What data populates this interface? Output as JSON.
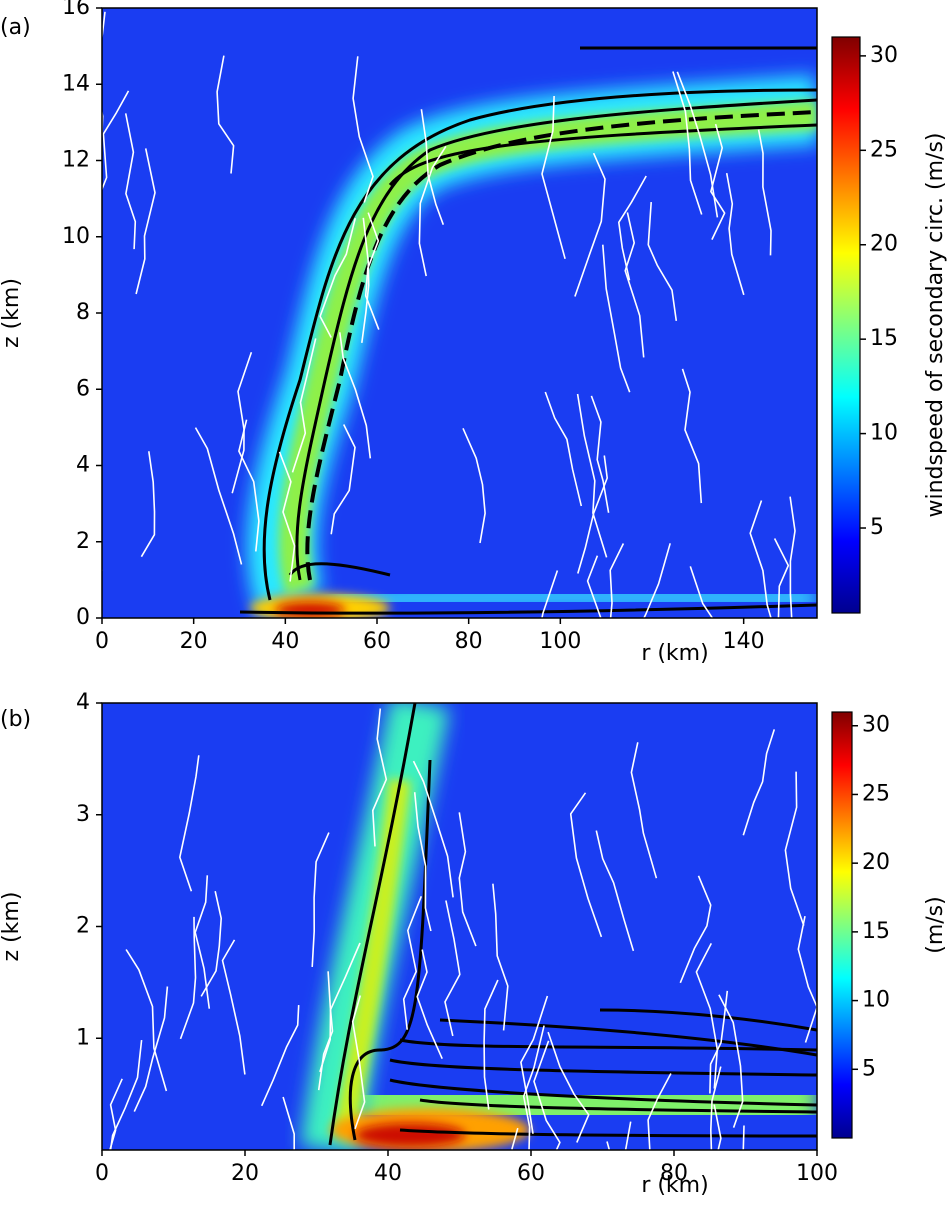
{
  "chart_data": [
    {
      "type": "heatmap",
      "panel_label": "(a)",
      "xlabel": "r (km)",
      "ylabel": "z (km)",
      "xlim": [
        0,
        156
      ],
      "xticks": [
        0,
        20,
        40,
        60,
        80,
        100,
        140
      ],
      "ylim": [
        0,
        16
      ],
      "yticks": [
        0,
        2,
        4,
        6,
        8,
        10,
        12,
        14,
        16
      ],
      "colorbar_label": "windspeed of secondary circ. (m/s)",
      "clim": [
        0.5,
        31
      ],
      "cticks": [
        5,
        10,
        15,
        20,
        25,
        30
      ]
    },
    {
      "type": "heatmap",
      "panel_label": "(b)",
      "xlabel": "r (km)",
      "ylabel": "z (km)",
      "xlim": [
        0,
        100
      ],
      "xticks": [
        0,
        20,
        40,
        60,
        80,
        100
      ],
      "ylim": [
        0,
        4
      ],
      "yticks": [
        1,
        2,
        3,
        4
      ],
      "colorbar_label": "(m/s)",
      "clim": [
        0,
        31
      ],
      "cticks": [
        5,
        10,
        15,
        20,
        25,
        30
      ]
    }
  ]
}
